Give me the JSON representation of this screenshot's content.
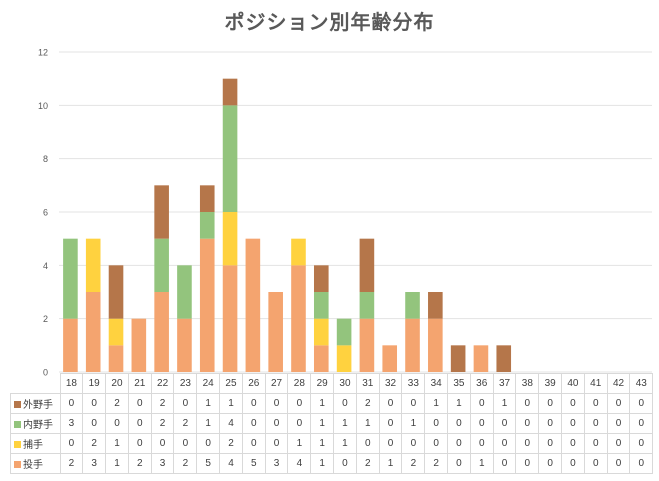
{
  "chart_data": {
    "type": "bar",
    "stacked": true,
    "title": "ポジション別年齢分布",
    "categories": [
      "18",
      "19",
      "20",
      "21",
      "22",
      "23",
      "24",
      "25",
      "26",
      "27",
      "28",
      "29",
      "30",
      "31",
      "32",
      "33",
      "34",
      "35",
      "36",
      "37",
      "38",
      "39",
      "40",
      "41",
      "42",
      "43"
    ],
    "series": [
      {
        "name": "投手",
        "color": "#f4a46f",
        "values": [
          2,
          3,
          1,
          2,
          3,
          2,
          5,
          4,
          5,
          3,
          4,
          1,
          0,
          2,
          1,
          2,
          2,
          0,
          1,
          0,
          0,
          0,
          0,
          0,
          0,
          0
        ]
      },
      {
        "name": "捕手",
        "color": "#ffd23f",
        "values": [
          0,
          2,
          1,
          0,
          0,
          0,
          0,
          2,
          0,
          0,
          1,
          1,
          1,
          0,
          0,
          0,
          0,
          0,
          0,
          0,
          0,
          0,
          0,
          0,
          0,
          0
        ]
      },
      {
        "name": "内野手",
        "color": "#93c47d",
        "values": [
          3,
          0,
          0,
          0,
          2,
          2,
          1,
          4,
          0,
          0,
          0,
          1,
          1,
          1,
          0,
          1,
          0,
          0,
          0,
          0,
          0,
          0,
          0,
          0,
          0,
          0
        ]
      },
      {
        "name": "外野手",
        "color": "#b5764a",
        "values": [
          0,
          0,
          2,
          0,
          2,
          0,
          1,
          1,
          0,
          0,
          0,
          1,
          0,
          2,
          0,
          0,
          1,
          1,
          0,
          1,
          0,
          0,
          0,
          0,
          0,
          0
        ]
      }
    ],
    "table_row_order": [
      "外野手",
      "内野手",
      "捕手",
      "投手"
    ],
    "ylim": [
      0,
      12
    ],
    "yticks": [
      0,
      2,
      4,
      6,
      8,
      10,
      12
    ],
    "grid": true,
    "legend": "data-table"
  }
}
